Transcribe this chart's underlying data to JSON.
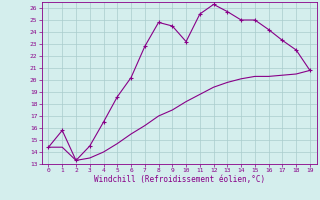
{
  "xlabel": "Windchill (Refroidissement éolien,°C)",
  "xlim": [
    -0.5,
    19.5
  ],
  "ylim": [
    13,
    26.5
  ],
  "xticks": [
    0,
    1,
    2,
    3,
    4,
    5,
    6,
    7,
    8,
    9,
    10,
    11,
    12,
    13,
    14,
    15,
    16,
    17,
    18,
    19
  ],
  "yticks": [
    13,
    14,
    15,
    16,
    17,
    18,
    19,
    20,
    21,
    22,
    23,
    24,
    25,
    26
  ],
  "bg_color": "#d4eeed",
  "grid_color": "#aacccc",
  "line_color": "#880088",
  "marker_line_x": [
    0,
    1,
    2,
    3,
    4,
    5,
    6,
    7,
    8,
    9,
    10,
    11,
    12,
    13,
    14,
    15,
    16,
    17,
    18,
    19
  ],
  "marker_line_y": [
    14.4,
    15.8,
    13.3,
    14.5,
    16.5,
    18.6,
    20.2,
    22.8,
    24.8,
    24.5,
    23.2,
    25.5,
    26.3,
    25.7,
    25.0,
    25.0,
    24.2,
    23.3,
    22.5,
    20.8
  ],
  "smooth_line_x": [
    0,
    1,
    2,
    3,
    4,
    5,
    6,
    7,
    8,
    9,
    10,
    11,
    12,
    13,
    14,
    15,
    16,
    17,
    18,
    19
  ],
  "smooth_line_y": [
    14.4,
    14.4,
    13.3,
    13.5,
    14.0,
    14.7,
    15.5,
    16.2,
    17.0,
    17.5,
    18.2,
    18.8,
    19.4,
    19.8,
    20.1,
    20.3,
    20.3,
    20.4,
    20.5,
    20.8
  ]
}
